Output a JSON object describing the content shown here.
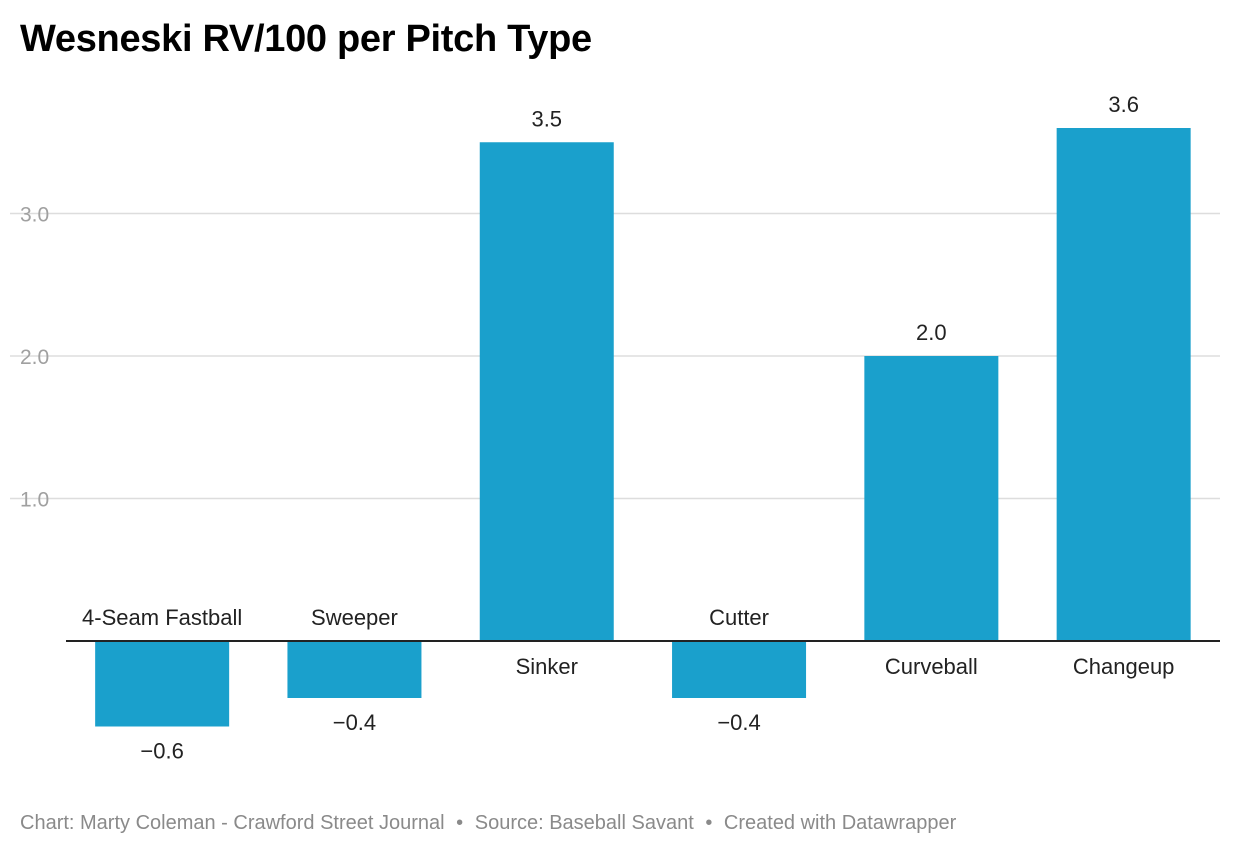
{
  "title": "Wesneski RV/100 per Pitch Type",
  "footer": {
    "chart_credit": "Chart: Marty Coleman - Crawford Street Journal",
    "separator": "•",
    "source": "Source: Baseball Savant",
    "created": "Created with Datawrapper"
  },
  "colors": {
    "bar": "#1aa0cc",
    "grid": "#dddddd",
    "axis": "#222222",
    "tick_label": "#a0a0a0",
    "label": "#222222"
  },
  "chart_data": {
    "type": "bar",
    "categories": [
      "4-Seam Fastball",
      "Sweeper",
      "Sinker",
      "Cutter",
      "Curveball",
      "Changeup"
    ],
    "values": [
      -0.6,
      -0.4,
      3.5,
      -0.4,
      2.0,
      3.6
    ],
    "value_labels": [
      "−0.6",
      "−0.4",
      "3.5",
      "−0.4",
      "2.0",
      "3.6"
    ],
    "yticks": [
      1.0,
      2.0,
      3.0
    ],
    "ytick_labels": [
      "1.0",
      "2.0",
      "3.0"
    ],
    "ylim": [
      -0.6,
      3.6
    ],
    "grid": true,
    "title": "Wesneski RV/100 per Pitch Type",
    "xlabel": "",
    "ylabel": ""
  }
}
